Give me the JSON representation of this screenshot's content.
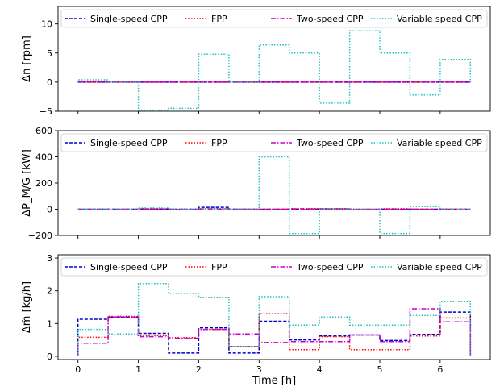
{
  "chart_data": [
    {
      "type": "line",
      "ylabel": "Δn [rpm]",
      "ylim": [
        -5,
        13
      ],
      "yticks": [
        -5,
        0,
        5,
        10
      ],
      "xlim": [
        -0.33,
        6.83
      ],
      "xticks": [
        0,
        1,
        2,
        3,
        4,
        5,
        6
      ],
      "show_xticklabels": false,
      "legend": "top",
      "series": [
        {
          "name": "Single-speed CPP",
          "color": "#0000cc",
          "dash": "dashed",
          "x": [
            0,
            0.5,
            1,
            1.5,
            2,
            2.5,
            3,
            3.5,
            4,
            4.5,
            5,
            5.5,
            6,
            6.5
          ],
          "y": [
            0,
            0,
            0,
            0,
            0,
            0,
            0,
            0,
            0,
            0,
            0,
            0,
            0,
            0
          ]
        },
        {
          "name": "FPP",
          "color": "#ff0000",
          "dash": "dotted",
          "x": [
            0,
            0.5,
            1,
            1.5,
            2,
            2.5,
            3,
            3.5,
            4,
            4.5,
            5,
            5.5,
            6,
            6.5
          ],
          "y": [
            0,
            0,
            0,
            0,
            0,
            0,
            0,
            0,
            0,
            0,
            0,
            0,
            0,
            0
          ]
        },
        {
          "name": "Two-speed CPP",
          "color": "#cc00cc",
          "dash": "dashdot",
          "x": [
            0,
            0.5,
            1,
            1.5,
            2,
            2.5,
            3,
            3.5,
            4,
            4.5,
            5,
            5.5,
            6,
            6.5
          ],
          "y": [
            0,
            0,
            0,
            0,
            0,
            0,
            0,
            0,
            0,
            0,
            0,
            0,
            0,
            0
          ]
        },
        {
          "name": "Variable speed CPP",
          "color": "#17bfbf",
          "dash": "dotted",
          "x": [
            0,
            0.5,
            1,
            1.5,
            2,
            2.5,
            3,
            3.5,
            4,
            4.5,
            5,
            5.5,
            6,
            6.5
          ],
          "y": [
            0.4,
            0,
            -4.8,
            -4.5,
            4.8,
            0,
            6.4,
            5.0,
            -3.6,
            8.8,
            5.0,
            -2.2,
            3.9,
            3.9
          ]
        }
      ]
    },
    {
      "type": "line",
      "ylabel": "ΔP_M/G [kW]",
      "ylim": [
        -200,
        600
      ],
      "yticks": [
        -200,
        0,
        200,
        400,
        600
      ],
      "xlim": [
        -0.33,
        6.83
      ],
      "xticks": [
        0,
        1,
        2,
        3,
        4,
        5,
        6
      ],
      "show_xticklabels": false,
      "legend": "top",
      "series": [
        {
          "name": "Single-speed CPP",
          "color": "#0000cc",
          "dash": "dashed",
          "x": [
            0,
            0.5,
            1,
            1.5,
            2,
            2.5,
            3,
            3.5,
            4,
            4.5,
            5,
            5.5,
            6,
            6.5
          ],
          "y": [
            0,
            0,
            2,
            0,
            15,
            0,
            0,
            2,
            3,
            -4,
            0,
            0,
            0,
            0
          ]
        },
        {
          "name": "FPP",
          "color": "#ff0000",
          "dash": "dotted",
          "x": [
            0,
            0.5,
            1,
            1.5,
            2,
            2.5,
            3,
            3.5,
            4,
            4.5,
            5,
            5.5,
            6,
            6.5
          ],
          "y": [
            0,
            0,
            4,
            -3,
            5,
            0,
            0,
            5,
            3,
            0,
            4,
            0,
            0,
            0
          ]
        },
        {
          "name": "Two-speed CPP",
          "color": "#cc00cc",
          "dash": "dashdot",
          "x": [
            0,
            0.5,
            1,
            1.5,
            2,
            2.5,
            3,
            3.5,
            4,
            4.5,
            5,
            5.5,
            6,
            6.5
          ],
          "y": [
            0,
            0,
            0,
            0,
            0,
            0,
            0,
            0,
            0,
            0,
            0,
            0,
            0,
            0
          ]
        },
        {
          "name": "Variable speed CPP",
          "color": "#17bfbf",
          "dash": "dotted",
          "x": [
            0,
            0.5,
            1,
            1.5,
            2,
            2.5,
            3,
            3.5,
            4,
            4.5,
            5,
            5.5,
            6,
            6.5
          ],
          "y": [
            0,
            0,
            10,
            0,
            5,
            0,
            400,
            -185,
            5,
            0,
            -185,
            20,
            0,
            0
          ]
        }
      ]
    },
    {
      "type": "line",
      "ylabel": "Δṁ [kg/h]",
      "xlabel": "Time [h]",
      "ylim": [
        -0.1,
        3.1
      ],
      "yticks": [
        0,
        1,
        2,
        3
      ],
      "xlim": [
        -0.33,
        6.83
      ],
      "xticks": [
        0,
        1,
        2,
        3,
        4,
        5,
        6
      ],
      "show_xticklabels": true,
      "legend": "top",
      "series": [
        {
          "name": "Single-speed CPP",
          "color": "#0000cc",
          "dash": "dashed",
          "x": [
            0,
            0.5,
            1,
            1.5,
            2,
            2.5,
            3,
            3.5,
            4,
            4.5,
            5,
            5.5,
            6,
            6.5
          ],
          "y": [
            1.13,
            1.2,
            0.7,
            0.1,
            0.87,
            0.1,
            1.07,
            0.5,
            0.62,
            0.65,
            0.48,
            0.67,
            1.35,
            1.35
          ]
        },
        {
          "name": "FPP",
          "color": "#ff0000",
          "dash": "dotted",
          "x": [
            0,
            0.5,
            1,
            1.5,
            2,
            2.5,
            3,
            3.5,
            4,
            4.5,
            5,
            5.5,
            6,
            6.5
          ],
          "y": [
            0.58,
            1.22,
            0.63,
            0.57,
            0.82,
            0.3,
            1.3,
            0.2,
            0.6,
            0.2,
            0.2,
            0.62,
            1.17,
            1.17
          ]
        },
        {
          "name": "Two-speed CPP",
          "color": "#cc00cc",
          "dash": "dashdot",
          "x": [
            0,
            0.5,
            1,
            1.5,
            2,
            2.5,
            3,
            3.5,
            4,
            4.5,
            5,
            5.5,
            6,
            6.5
          ],
          "y": [
            0.4,
            1.2,
            0.6,
            0.55,
            0.82,
            0.68,
            0.42,
            0.45,
            0.45,
            0.65,
            0.45,
            1.45,
            1.05,
            1.05
          ]
        },
        {
          "name": "Variable speed CPP",
          "color": "#17bfbf",
          "dash": "dotted",
          "x": [
            0,
            0.5,
            1,
            1.5,
            2,
            2.5,
            3,
            3.5,
            4,
            4.5,
            5,
            5.5,
            6,
            6.5
          ],
          "y": [
            0.82,
            0.68,
            2.22,
            1.92,
            1.8,
            0.3,
            1.82,
            0.95,
            1.2,
            0.95,
            0.95,
            1.25,
            1.68,
            1.68
          ]
        }
      ]
    }
  ]
}
